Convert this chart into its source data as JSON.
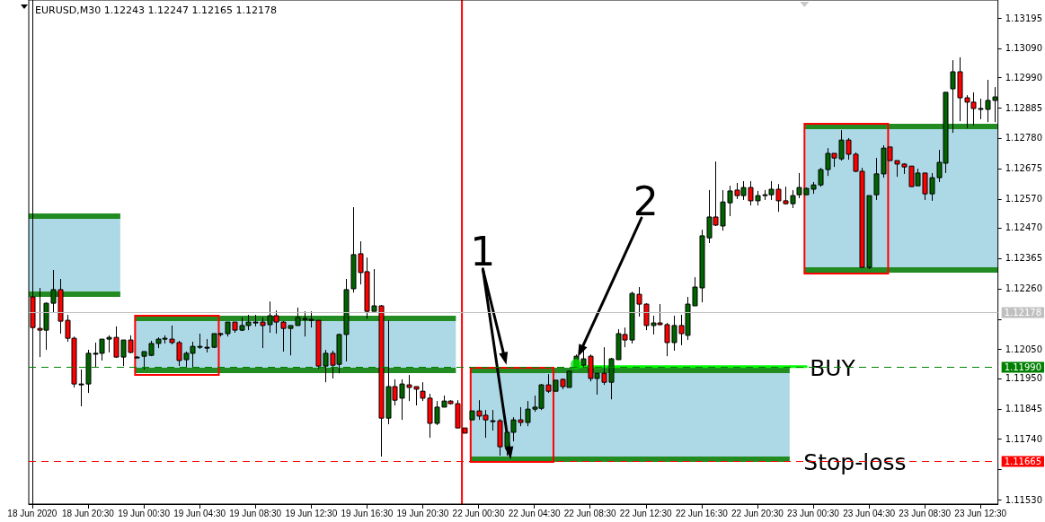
{
  "chart_data": {
    "type": "candlestick",
    "title": "EURUSD,M30 1.12243 1.12247 1.12165 1.12178",
    "categories": [
      "18 Jun 2020",
      null,
      null,
      null,
      null,
      null,
      null,
      null,
      "18 Jun 20:30",
      null,
      null,
      null,
      null,
      null,
      null,
      null,
      "19 Jun 00:30",
      null,
      null,
      null,
      null,
      null,
      null,
      null,
      "19 Jun 04:30",
      null,
      null,
      null,
      null,
      null,
      null,
      null,
      "19 Jun 08:30",
      null,
      null,
      null,
      null,
      null,
      null,
      null,
      "19 Jun 12:30",
      null,
      null,
      null,
      null,
      null,
      null,
      null,
      "19 Jun 16:30",
      null,
      null,
      null,
      null,
      null,
      null,
      null,
      "19 Jun 20:30",
      null,
      null,
      null,
      null,
      null,
      null,
      null,
      "22 Jun 00:30",
      null,
      null,
      null,
      null,
      null,
      null,
      null,
      "22 Jun 04:30",
      null,
      null,
      null,
      null,
      null,
      null,
      null,
      "22 Jun 08:30",
      null,
      null,
      null,
      null,
      null,
      null,
      null,
      "22 Jun 12:30",
      null,
      null,
      null,
      null,
      null,
      null,
      null,
      "22 Jun 16:30",
      null,
      null,
      null,
      null,
      null,
      null,
      null,
      "22 Jun 20:30",
      null,
      null,
      null,
      null,
      null,
      null,
      null,
      "23 Jun 00:30",
      null,
      null,
      null,
      null,
      null,
      null,
      null,
      "23 Jun 04:30",
      null,
      null,
      null,
      null,
      null,
      null,
      null,
      "23 Jun 08:30",
      null,
      null,
      null,
      null,
      null,
      null,
      null,
      "23 Jun 12:30",
      null,
      null
    ],
    "series": [
      {
        "ohlc": [
          [
            1.12231,
            1.12311,
            1.12104,
            1.12125
          ],
          [
            1.12122,
            1.12262,
            1.12023,
            1.12116
          ],
          [
            1.12116,
            1.12212,
            1.12048,
            1.12209
          ],
          [
            1.12209,
            1.12324,
            1.12178,
            1.12256
          ],
          [
            1.12256,
            1.12293,
            1.12104,
            1.12147
          ],
          [
            1.1215,
            1.12169,
            1.12076,
            1.12088
          ],
          [
            1.12088,
            1.12094,
            1.11918,
            1.1193
          ],
          [
            1.1193,
            1.1198,
            1.11853,
            1.1193
          ],
          [
            1.1193,
            1.12048,
            1.11899,
            1.12036
          ],
          [
            1.12036,
            1.12073,
            1.11989,
            1.12036
          ],
          [
            1.12036,
            1.12085,
            1.12011,
            1.12085
          ],
          [
            1.12085,
            1.12098,
            1.12039,
            1.12091
          ],
          [
            1.12091,
            1.12129,
            1.1202,
            1.12023
          ],
          [
            1.12023,
            1.12082,
            1.11992,
            1.12082
          ],
          [
            1.12082,
            1.12098,
            1.12036,
            1.12039
          ],
          [
            1.12023,
            1.12026,
            1.1202,
            1.12023
          ],
          [
            1.12026,
            1.12042,
            1.1198,
            1.12042
          ],
          [
            1.12029,
            1.12079,
            1.12026,
            1.1207
          ],
          [
            1.1207,
            1.12091,
            1.12054,
            1.12085
          ],
          [
            1.12085,
            1.12098,
            1.1207,
            1.12088
          ],
          [
            1.12085,
            1.12132,
            1.12067,
            1.12073
          ],
          [
            1.12073,
            1.12079,
            1.11992,
            1.12011
          ],
          [
            1.12014,
            1.12042,
            1.11986,
            1.12036
          ],
          [
            1.12036,
            1.12076,
            1.11986,
            1.1206
          ],
          [
            1.12057,
            1.12104,
            1.12051,
            1.1206
          ],
          [
            1.12057,
            1.12085,
            1.12039,
            1.12057
          ],
          [
            1.12057,
            1.12104,
            1.12054,
            1.12104
          ],
          [
            1.12104,
            1.12107,
            1.12094,
            1.12104
          ],
          [
            1.12104,
            1.12144,
            1.12094,
            1.12144
          ],
          [
            1.12144,
            1.12144,
            1.12107,
            1.12116
          ],
          [
            1.12116,
            1.1216,
            1.12113,
            1.12132
          ],
          [
            1.12132,
            1.12169,
            1.12116,
            1.12144
          ],
          [
            1.12144,
            1.12169,
            1.12129,
            1.12144
          ],
          [
            1.12144,
            1.1216,
            1.12054,
            1.12132
          ],
          [
            1.12135,
            1.12215,
            1.12107,
            1.12166
          ],
          [
            1.12166,
            1.12184,
            1.12104,
            1.12144
          ],
          [
            1.12144,
            1.12147,
            1.12042,
            1.12122
          ],
          [
            1.12122,
            1.12132,
            1.12029,
            1.12132
          ],
          [
            1.12132,
            1.12194,
            1.12132,
            1.1216
          ],
          [
            1.12153,
            1.12181,
            1.12094,
            1.12156
          ],
          [
            1.12153,
            1.12181,
            1.12125,
            1.12153
          ],
          [
            1.1215,
            1.1215,
            1.11983,
            1.11992
          ],
          [
            1.11992,
            1.12048,
            1.11936,
            1.12036
          ],
          [
            1.12036,
            1.12045,
            1.11949,
            1.11995
          ],
          [
            1.11998,
            1.12104,
            1.11967,
            1.12101
          ],
          [
            1.12101,
            1.12293,
            1.12008,
            1.12256
          ],
          [
            1.12259,
            1.12541,
            1.12246,
            1.12377
          ],
          [
            1.1238,
            1.12423,
            1.12274,
            1.12315
          ],
          [
            1.12318,
            1.12367,
            1.12156,
            1.12181
          ],
          [
            1.12181,
            1.12327,
            1.12181,
            1.122
          ],
          [
            1.122,
            1.12203,
            1.11679,
            1.11812
          ],
          [
            1.11812,
            1.1215,
            1.11791,
            1.11921
          ],
          [
            1.11921,
            1.11946,
            1.11856,
            1.11874
          ],
          [
            1.11881,
            1.11946,
            1.11806,
            1.1193
          ],
          [
            1.11927,
            1.11961,
            1.11871,
            1.11918
          ],
          [
            1.11921,
            1.11921,
            1.11856,
            1.11912
          ],
          [
            1.11905,
            1.11936,
            1.11871,
            1.11881
          ],
          [
            1.11881,
            1.11896,
            1.11744,
            1.11794
          ],
          [
            1.11794,
            1.11871,
            1.11788,
            1.1185
          ],
          [
            1.1185,
            1.1189,
            1.1185,
            1.11871
          ],
          [
            1.11871,
            1.11874,
            1.11859,
            1.11862
          ],
          [
            1.11862,
            1.11874,
            1.11778,
            1.11778
          ],
          [
            1.11778,
            1.11778,
            1.1176,
            1.1176
          ],
          [
            1.11806,
            1.11837,
            1.11806,
            1.11837
          ],
          [
            1.11837,
            1.11874,
            1.11806,
            1.11819
          ],
          [
            1.11822,
            1.1184,
            1.11744,
            1.11806
          ],
          [
            1.11803,
            1.1184,
            1.11769,
            1.11803
          ],
          [
            1.11803,
            1.11809,
            1.11682,
            1.11713
          ],
          [
            1.11713,
            1.11775,
            1.11682,
            1.11763
          ],
          [
            1.11763,
            1.11815,
            1.11732,
            1.11806
          ],
          [
            1.11806,
            1.1185,
            1.11784,
            1.11797
          ],
          [
            1.11797,
            1.11871,
            1.11784,
            1.11843
          ],
          [
            1.11843,
            1.1189,
            1.11834,
            1.1185
          ],
          [
            1.11846,
            1.1193,
            1.1184,
            1.11927
          ],
          [
            1.11927,
            1.11964,
            1.11899,
            1.11905
          ],
          [
            1.11905,
            1.11943,
            1.11905,
            1.11943
          ],
          [
            1.11946,
            1.11949,
            1.11912,
            1.11921
          ],
          [
            1.11918,
            1.11977,
            1.11918,
            1.11974
          ],
          [
            1.11986,
            1.12032,
            1.11986,
            1.12026
          ],
          [
            1.11995,
            1.12048,
            1.11986,
            1.12017
          ],
          [
            1.12026,
            1.12032,
            1.11939,
            1.11949
          ],
          [
            1.11949,
            1.11967,
            1.11893,
            1.11967
          ],
          [
            1.11967,
            1.12057,
            1.11927,
            1.11936
          ],
          [
            1.11936,
            1.1202,
            1.11877,
            1.12017
          ],
          [
            1.12014,
            1.12119,
            1.12014,
            1.12104
          ],
          [
            1.12101,
            1.12125,
            1.12057,
            1.12082
          ],
          [
            1.12082,
            1.12249,
            1.1207,
            1.12243
          ],
          [
            1.1224,
            1.12265,
            1.12163,
            1.12206
          ],
          [
            1.12206,
            1.12209,
            1.12116,
            1.12132
          ],
          [
            1.12132,
            1.12166,
            1.12101,
            1.12141
          ],
          [
            1.12141,
            1.12206,
            1.12132,
            1.12135
          ],
          [
            1.12135,
            1.12141,
            1.12026,
            1.12073
          ],
          [
            1.12073,
            1.12166,
            1.12045,
            1.12132
          ],
          [
            1.12132,
            1.12169,
            1.12064,
            1.12104
          ],
          [
            1.12098,
            1.12231,
            1.12082,
            1.12206
          ],
          [
            1.122,
            1.12299,
            1.122,
            1.12265
          ],
          [
            1.12262,
            1.12463,
            1.12212,
            1.12442
          ],
          [
            1.12435,
            1.126,
            1.12417,
            1.12507
          ],
          [
            1.12507,
            1.12699,
            1.12476,
            1.12479
          ],
          [
            1.12476,
            1.126,
            1.1246,
            1.12559
          ],
          [
            1.12556,
            1.12615,
            1.1251,
            1.12597
          ],
          [
            1.126,
            1.12625,
            1.12569,
            1.12581
          ],
          [
            1.12581,
            1.12631,
            1.12566,
            1.12609
          ],
          [
            1.12609,
            1.12631,
            1.12547,
            1.12563
          ],
          [
            1.12563,
            1.12597,
            1.12547,
            1.12581
          ],
          [
            1.12581,
            1.126,
            1.12566,
            1.12584
          ],
          [
            1.12584,
            1.12631,
            1.12566,
            1.12603
          ],
          [
            1.12603,
            1.12621,
            1.12525,
            1.12563
          ],
          [
            1.12563,
            1.12612,
            1.1255,
            1.12553
          ],
          [
            1.12553,
            1.126,
            1.12538,
            1.12581
          ],
          [
            1.12584,
            1.12659,
            1.12572,
            1.12609
          ],
          [
            1.12584,
            1.12609,
            1.12584,
            1.12606
          ],
          [
            1.12603,
            1.12628,
            1.12587,
            1.12618
          ],
          [
            1.12618,
            1.12677,
            1.12612,
            1.12671
          ],
          [
            1.12671,
            1.12745,
            1.12649,
            1.12727
          ],
          [
            1.12727,
            1.12727,
            1.1268,
            1.12711
          ],
          [
            1.12708,
            1.12807,
            1.12702,
            1.12773
          ],
          [
            1.12773,
            1.1278,
            1.12705,
            1.12724
          ],
          [
            1.12724,
            1.1273,
            1.12662,
            1.12665
          ],
          [
            1.12665,
            1.12677,
            1.12333,
            1.12333
          ],
          [
            1.12333,
            1.12581,
            1.12327,
            1.12581
          ],
          [
            1.12584,
            1.12711,
            1.12566,
            1.12656
          ],
          [
            1.12656,
            1.12755,
            1.12643,
            1.12745
          ],
          [
            1.12749,
            1.12749,
            1.12702,
            1.12702
          ],
          [
            1.12702,
            1.12702,
            1.12646,
            1.1269
          ],
          [
            1.1269,
            1.12693,
            1.12656,
            1.1268
          ],
          [
            1.12683,
            1.12683,
            1.12612,
            1.12612
          ],
          [
            1.12615,
            1.12674,
            1.12615,
            1.12659
          ],
          [
            1.12659,
            1.12659,
            1.12566,
            1.12587
          ],
          [
            1.12587,
            1.12659,
            1.12563,
            1.12643
          ],
          [
            1.12643,
            1.12739,
            1.12628,
            1.12696
          ],
          [
            1.12693,
            1.12938,
            1.12659,
            1.12938
          ],
          [
            1.1295,
            1.13049,
            1.12798,
            1.13009
          ],
          [
            1.13009,
            1.13059,
            1.12838,
            1.12919
          ],
          [
            1.12919,
            1.12928,
            1.12814,
            1.12904
          ],
          [
            1.12904,
            1.12938,
            1.12823,
            1.12882
          ],
          [
            1.12882,
            1.12916,
            1.12845,
            1.12882
          ],
          [
            1.12879,
            1.12981,
            1.12835,
            1.1291
          ],
          [
            1.1291,
            1.12956,
            1.12835,
            1.12922
          ]
        ],
        "colors": [
          "#ff0000",
          "#ff0000",
          "#006400",
          "#006400",
          "#ff0000",
          "#ff0000",
          "#ff0000",
          "#000000",
          "#006400",
          "#000000",
          "#006400",
          "#006400",
          "#ff0000",
          "#006400",
          "#ff0000",
          "#000000",
          "#006400",
          "#006400",
          "#006400",
          "#006400",
          "#ff0000",
          "#ff0000",
          "#006400",
          "#006400",
          "#006400",
          "#000000",
          "#006400",
          "#000000",
          "#006400",
          "#ff0000",
          "#006400",
          "#006400",
          "#000000",
          "#ff0000",
          "#006400",
          "#ff0000",
          "#ff0000",
          "#006400",
          "#006400",
          "#006400",
          "#000000",
          "#ff0000",
          "#006400",
          "#ff0000",
          "#006400",
          "#006400",
          "#006400",
          "#ff0000",
          "#ff0000",
          "#006400",
          "#ff0000",
          "#006400",
          "#ff0000",
          "#006400",
          "#ff0000",
          "#ff0000",
          "#ff0000",
          "#ff0000",
          "#006400",
          "#006400",
          "#ff0000",
          "#ff0000",
          "#ff0000",
          "#006400",
          "#ff0000",
          "#ff0000",
          "#000000",
          "#ff0000",
          "#006400",
          "#006400",
          "#ff0000",
          "#006400",
          "#006400",
          "#006400",
          "#ff0000",
          "#006400",
          "#ff0000",
          "#006400",
          "#006400",
          "#006400",
          "#ff0000",
          "#006400",
          "#ff0000",
          "#006400",
          "#006400",
          "#ff0000",
          "#006400",
          "#ff0000",
          "#ff0000",
          "#006400",
          "#ff0000",
          "#ff0000",
          "#006400",
          "#ff0000",
          "#006400",
          "#006400",
          "#006400",
          "#006400",
          "#ff0000",
          "#006400",
          "#006400",
          "#ff0000",
          "#006400",
          "#ff0000",
          "#006400",
          "#006400",
          "#006400",
          "#ff0000",
          "#ff0000",
          "#006400",
          "#006400",
          "#006400",
          "#006400",
          "#006400",
          "#006400",
          "#ff0000",
          "#006400",
          "#ff0000",
          "#ff0000",
          "#ff0000",
          "#006400",
          "#006400",
          "#006400",
          "#ff0000",
          "#ff0000",
          "#ff0000",
          "#ff0000",
          "#006400",
          "#ff0000",
          "#006400",
          "#006400",
          "#006400",
          "#006400",
          "#ff0000",
          "#ff0000",
          "#ff0000",
          "#000000",
          "#006400",
          "#006400"
        ]
      },
      {
        "type": "line",
        "color": "#00ff00",
        "marker": "none",
        "values": [
          null,
          null,
          null,
          null,
          null,
          null,
          null,
          null,
          null,
          null,
          null,
          null,
          null,
          null,
          null,
          null,
          null,
          null,
          null,
          null,
          null,
          null,
          null,
          null,
          null,
          null,
          null,
          null,
          null,
          null,
          null,
          null,
          null,
          null,
          null,
          null,
          null,
          null,
          null,
          null,
          null,
          null,
          null,
          null,
          null,
          null,
          null,
          null,
          null,
          null,
          null,
          null,
          null,
          null,
          null,
          null,
          null,
          null,
          null,
          null,
          null,
          null,
          null,
          null,
          null,
          null,
          null,
          null,
          null,
          null,
          null,
          null,
          null,
          null,
          null,
          null,
          null,
          null,
          1.1199,
          1.1199,
          1.1199,
          1.1199,
          1.1199,
          1.1199,
          1.1199,
          1.1199,
          1.1199,
          1.1199,
          1.1199,
          1.1199,
          1.1199,
          1.1199,
          1.1199,
          1.1199,
          1.1199,
          1.1199,
          1.1199,
          1.1199,
          1.1199,
          1.1199,
          1.1199,
          1.1199,
          1.1199,
          1.1199,
          1.1199,
          1.1199,
          1.1199,
          1.1199,
          1.1199,
          1.1199,
          1.1199,
          1.1199,
          null,
          null,
          null,
          null,
          null,
          null,
          null,
          null,
          null,
          null,
          null,
          null,
          null,
          null,
          null,
          null,
          null,
          null,
          null,
          null,
          null,
          null,
          null,
          null,
          null,
          null,
          null
        ]
      },
      {
        "type": "scatter",
        "color": "#00e000",
        "marker": "circle",
        "values": [
          null,
          null,
          null,
          null,
          null,
          null,
          null,
          null,
          null,
          null,
          null,
          null,
          null,
          null,
          null,
          null,
          null,
          null,
          null,
          null,
          null,
          null,
          null,
          null,
          null,
          null,
          null,
          null,
          null,
          null,
          null,
          null,
          null,
          null,
          null,
          null,
          null,
          null,
          null,
          null,
          null,
          null,
          null,
          null,
          null,
          null,
          null,
          null,
          null,
          null,
          null,
          null,
          null,
          null,
          null,
          null,
          null,
          null,
          null,
          null,
          null,
          null,
          null,
          null,
          null,
          null,
          null,
          null,
          null,
          null,
          null,
          null,
          null,
          null,
          null,
          null,
          null,
          null,
          1.11998,
          null,
          null,
          null,
          null,
          null,
          null,
          null,
          null,
          null,
          null,
          null,
          null,
          null,
          null,
          null,
          null,
          null,
          null,
          null,
          null,
          null,
          null,
          null,
          null,
          null,
          null,
          null,
          null,
          null,
          null,
          null,
          null,
          null,
          null,
          null,
          null,
          null,
          null,
          null,
          null,
          null,
          null,
          null,
          null,
          null,
          null,
          null,
          null,
          null,
          null,
          null,
          null,
          null,
          null,
          null,
          null,
          null,
          null,
          null,
          null
        ]
      }
    ],
    "ylim": [
      1.11515,
      1.13257
    ],
    "yticks": [
      {
        "value": 1.1153,
        "label": "1.11530"
      },
      {
        "value": 1.11635,
        "label": null
      },
      {
        "value": 1.1174,
        "label": "1.11740"
      },
      1.11845,
      {
        "value": 1.1195,
        "label": "1.11950"
      },
      {
        "value": 1.1205,
        "label": "1.12050"
      },
      {
        "value": 1.12155,
        "label": null
      },
      {
        "value": 1.1226,
        "label": "1.12260"
      },
      1.12365,
      {
        "value": 1.1247,
        "label": "1.12470"
      },
      {
        "value": 1.1257,
        "label": "1.12570"
      },
      1.12675,
      {
        "value": 1.1278,
        "label": "1.12780"
      },
      1.12885,
      {
        "value": 1.1299,
        "label": "1.12990"
      },
      {
        "value": 1.1309,
        "label": "1.13090"
      },
      1.13195
    ],
    "ref_lines": [
      {
        "axis": "y",
        "value": 1.12178,
        "label": "1.12178",
        "color": "#c0c0c0",
        "line_style": "solid"
      },
      {
        "axis": "y",
        "value": 1.1199,
        "label": "1.11990",
        "color": "#008000",
        "line_style": "dashed"
      },
      {
        "axis": "y",
        "value": 1.11665,
        "label": "1.11665",
        "color": "#ff0000",
        "line_style": "dashed"
      }
    ],
    "annotations": [
      {
        "text": "1",
        "y": 1.1199
      },
      "2",
      {
        "text": "BUY",
        "y": 1.1199
      },
      {
        "text": "Stop-loss",
        "y": 1.11665
      }
    ]
  }
}
